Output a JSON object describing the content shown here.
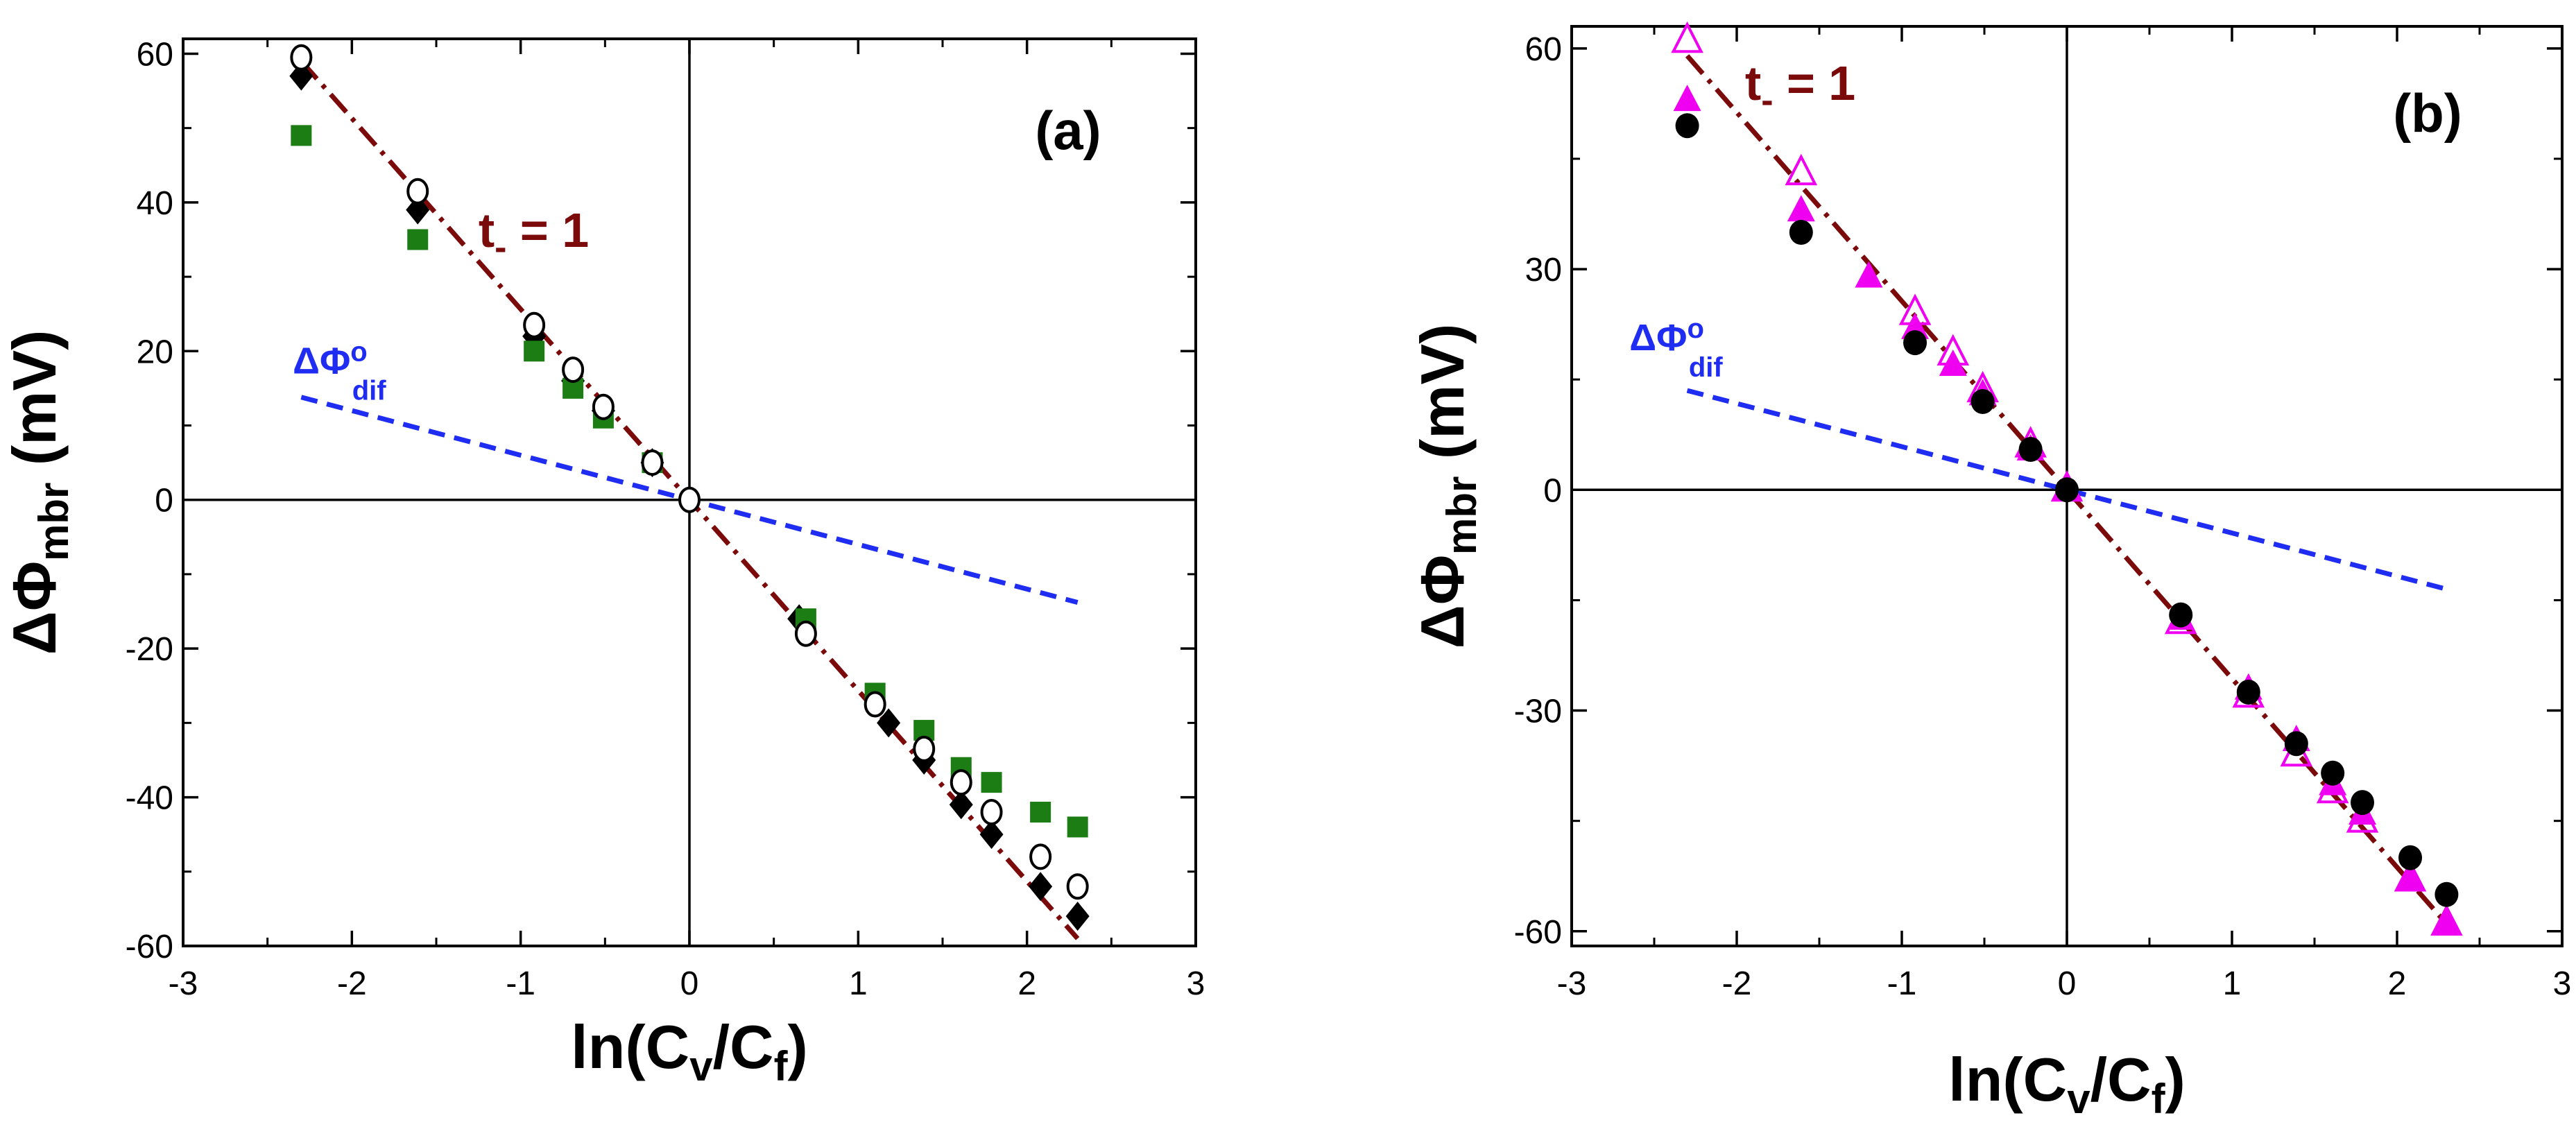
{
  "colors": {
    "axis": "#000000",
    "fit_line": "#7b0a0a",
    "dif_line": "#1f2cf2",
    "green": "#1b7d14",
    "magenta": "#f000f0",
    "black": "#000000"
  },
  "chart_data": [
    {
      "type": "scatter",
      "panel_label": "(a)",
      "xlabel": {
        "main": "ln(C",
        "sub1": "v",
        "mid": "/C",
        "sub2": "f",
        "end": ")"
      },
      "ylabel": {
        "main": "ΔΦ",
        "sub": "mbr",
        "unit": " (mV)"
      },
      "xlim": [
        -3,
        3
      ],
      "ylim": [
        -60,
        62
      ],
      "xticks": [
        -3,
        -2,
        -1,
        0,
        1,
        2,
        3
      ],
      "xtick_labels": [
        "-3",
        "-2",
        "-1",
        "0",
        "1",
        "2",
        "3"
      ],
      "yticks": [
        -60,
        -40,
        -20,
        0,
        20,
        40,
        60
      ],
      "ytick_labels": [
        "-60",
        "-40",
        "-20",
        "0",
        "20",
        "40",
        "60"
      ],
      "annotations": [
        {
          "id": "t",
          "main": "t",
          "sub": "-",
          "rest": " = 1",
          "x": -1.25,
          "y": 34,
          "color": "fit_line"
        },
        {
          "id": "phi",
          "main": "ΔΦ",
          "sup": "o",
          "sub": "dif",
          "x": -2.35,
          "y": 17,
          "color": "dif_line"
        }
      ],
      "lines": [
        {
          "name": "t- = 1",
          "style": "dash-dot",
          "color": "fit_line",
          "x": [
            -2.3,
            2.3
          ],
          "y": [
            59,
            -59
          ]
        },
        {
          "name": "ΔΦ°dif",
          "style": "dashed",
          "color": "dif_line",
          "x": [
            -2.3,
            2.3
          ],
          "y": [
            13.8,
            -13.8
          ]
        }
      ],
      "series": [
        {
          "name": "black diamonds",
          "marker": "diamond",
          "color": "black",
          "x": [
            -2.3,
            -1.61,
            -0.92,
            -0.69,
            -0.51,
            -0.22,
            0,
            0.65,
            1.18,
            1.39,
            1.61,
            1.79,
            2.08,
            2.3
          ],
          "y": [
            57,
            39,
            22,
            16,
            12,
            5,
            0,
            -16,
            -30,
            -35,
            -41,
            -45,
            -52,
            -56
          ]
        },
        {
          "name": "green squares",
          "marker": "square",
          "color": "green",
          "x": [
            -2.3,
            -1.61,
            -0.92,
            -0.69,
            -0.51,
            -0.22,
            0.69,
            1.1,
            1.39,
            1.61,
            1.79,
            2.08,
            2.3
          ],
          "y": [
            49,
            35,
            20,
            15,
            11,
            5,
            -16,
            -26,
            -31,
            -36,
            -38,
            -42,
            -44
          ]
        },
        {
          "name": "open circles",
          "marker": "circle-open",
          "color": "black",
          "x": [
            -2.3,
            -1.61,
            -0.92,
            -0.69,
            -0.51,
            -0.22,
            0,
            0.69,
            1.1,
            1.39,
            1.61,
            1.79,
            2.08,
            2.3
          ],
          "y": [
            59.5,
            41.5,
            23.5,
            17.5,
            12.5,
            5,
            0,
            -18,
            -27.5,
            -33.5,
            -38,
            -42,
            -48,
            -52
          ]
        }
      ]
    },
    {
      "type": "scatter",
      "panel_label": "(b)",
      "xlabel": {
        "main": "ln(C",
        "sub1": "v",
        "mid": "/C",
        "sub2": "f",
        "end": ")"
      },
      "ylabel": {
        "main": "ΔΦ",
        "sub": "mbr",
        "unit": " (mV)"
      },
      "xlim": [
        -3,
        3
      ],
      "ylim": [
        -62,
        63
      ],
      "xticks": [
        -3,
        -2,
        -1,
        0,
        1,
        2,
        3
      ],
      "xtick_labels": [
        "-3",
        "-2",
        "-1",
        "0",
        "1",
        "2",
        "3"
      ],
      "yticks": [
        -60,
        -30,
        0,
        30,
        60
      ],
      "ytick_labels": [
        "-60",
        "-30",
        "0",
        "30",
        "60"
      ],
      "annotations": [
        {
          "id": "t",
          "main": "t",
          "sub": "-",
          "rest": " = 1",
          "x": -1.95,
          "y": 53,
          "color": "fit_line"
        },
        {
          "id": "phi",
          "main": "ΔΦ",
          "sup": "o",
          "sub": "dif",
          "x": -2.65,
          "y": 19,
          "color": "dif_line"
        }
      ],
      "lines": [
        {
          "name": "t- = 1",
          "style": "dash-dot",
          "color": "fit_line",
          "x": [
            -2.3,
            2.3
          ],
          "y": [
            59,
            -59
          ]
        },
        {
          "name": "ΔΦ°dif",
          "style": "dashed",
          "color": "dif_line",
          "x": [
            -2.3,
            2.3
          ],
          "y": [
            13.5,
            -13.5
          ]
        }
      ],
      "series": [
        {
          "name": "open triangles",
          "marker": "triangle-open",
          "color": "magenta",
          "x": [
            -2.3,
            -1.61,
            -0.92,
            -0.69,
            -0.51,
            -0.22,
            0,
            0.69,
            1.1,
            1.39,
            1.61,
            1.79,
            2.08,
            2.3
          ],
          "y": [
            61,
            43,
            24,
            18.5,
            13.5,
            6,
            0,
            -18,
            -28,
            -36,
            -41,
            -45,
            -53,
            -59
          ]
        },
        {
          "name": "filled triangles",
          "marker": "triangle",
          "color": "magenta",
          "x": [
            -2.3,
            -1.61,
            -1.2,
            -0.92,
            -0.69,
            -0.51,
            -0.22,
            0,
            0.69,
            1.1,
            1.39,
            1.61,
            1.79,
            2.08,
            2.3
          ],
          "y": [
            53,
            38,
            29,
            22,
            17,
            13,
            5.5,
            0,
            -17.5,
            -27,
            -34,
            -40,
            -44,
            -53,
            -59
          ]
        },
        {
          "name": "filled circles",
          "marker": "circle",
          "color": "black",
          "x": [
            -2.3,
            -1.61,
            -0.92,
            -0.51,
            -0.22,
            0,
            0.69,
            1.1,
            1.39,
            1.61,
            1.79,
            2.08,
            2.3
          ],
          "y": [
            49.5,
            35,
            20,
            12,
            5.5,
            0,
            -17,
            -27.5,
            -34.5,
            -38.5,
            -42.5,
            -50,
            -55
          ]
        }
      ]
    }
  ]
}
